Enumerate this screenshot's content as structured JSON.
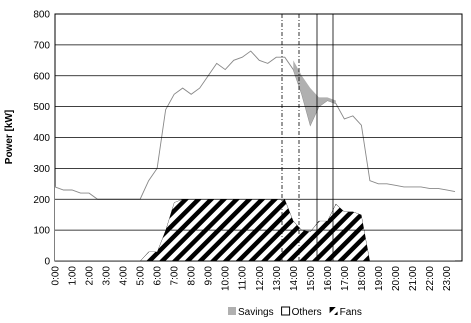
{
  "chart_data": {
    "type": "stacked-area",
    "y_label": "Power [kW]",
    "categories": [
      "0:00",
      null,
      "1:00",
      null,
      "2:00",
      null,
      "3:00",
      null,
      "4:00",
      null,
      "5:00",
      null,
      "6:00",
      null,
      "7:00",
      null,
      "8:00",
      null,
      "9:00",
      null,
      "10:00",
      null,
      "11:00",
      null,
      "12:00",
      null,
      "13:00",
      null,
      "14:00",
      null,
      "15:00",
      null,
      "16:00",
      null,
      "17:00",
      null,
      "18:00",
      null,
      "19:00",
      null,
      "20:00",
      null,
      "21:00",
      null,
      "22:00",
      null,
      "23:00",
      null
    ],
    "series": [
      {
        "name": "Fans",
        "color": "#000000",
        "hatch": true,
        "values": [
          0,
          0,
          0,
          0,
          0,
          0,
          0,
          0,
          0,
          0,
          0,
          30,
          30,
          100,
          190,
          200,
          200,
          200,
          200,
          200,
          200,
          200,
          200,
          200,
          200,
          200,
          200,
          200,
          130,
          100,
          95,
          130,
          130,
          185,
          160,
          160,
          150,
          0,
          0,
          0,
          0,
          0,
          0,
          0,
          0,
          0,
          0,
          0
        ]
      },
      {
        "name": "Others",
        "color": "#ffffff",
        "hatch": false,
        "values": [
          240,
          230,
          230,
          220,
          220,
          200,
          200,
          200,
          200,
          200,
          200,
          230,
          270,
          390,
          350,
          360,
          340,
          360,
          400,
          440,
          420,
          450,
          460,
          480,
          450,
          440,
          460,
          460,
          490,
          440,
          345,
          370,
          390,
          325,
          300,
          310,
          290,
          260,
          250,
          250,
          245,
          240,
          240,
          240,
          235,
          235,
          230,
          225
        ]
      },
      {
        "name": "Savings",
        "color": "#b0b0b0",
        "hatch": false,
        "values": [
          null,
          null,
          null,
          null,
          null,
          null,
          null,
          null,
          null,
          null,
          null,
          null,
          null,
          null,
          null,
          null,
          null,
          null,
          null,
          null,
          null,
          null,
          null,
          null,
          null,
          null,
          null,
          null,
          30,
          60,
          120,
          30,
          10,
          10,
          null,
          null,
          null,
          null,
          null,
          null,
          null,
          null,
          null,
          null,
          null,
          null,
          null,
          null
        ]
      }
    ],
    "legend_order": [
      "Savings",
      "Others",
      "Fans"
    ],
    "ylim": [
      0,
      800
    ],
    "yticks": [
      0,
      100,
      200,
      300,
      400,
      500,
      600,
      700,
      800
    ],
    "grid": true
  }
}
